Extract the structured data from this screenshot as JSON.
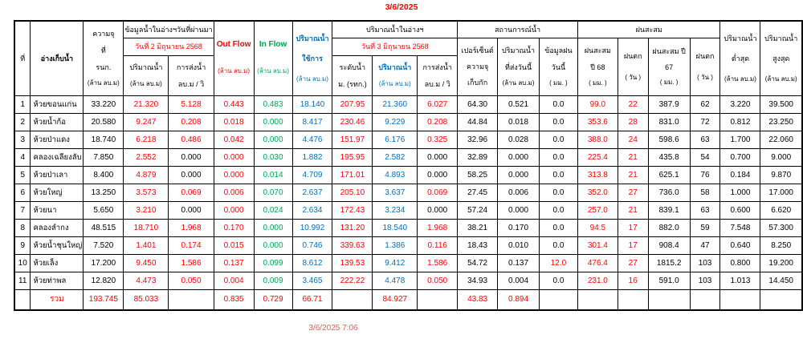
{
  "report": {
    "date": "3/6/2025",
    "generated": "3/6/2025 7:06"
  },
  "colors": {
    "red_values": "#FE0000",
    "green_values": "#00A651",
    "blue_values": "#0070C0",
    "black_values": "#000000",
    "title": "#FE0000",
    "footer": "#F75454"
  },
  "header": {
    "no": "ที่",
    "reservoir": "อ่างเก็บน้ำ",
    "capacity": [
      "ความจุ",
      "ที่",
      "รนก.",
      "(ล้าน ลบ.ม)"
    ],
    "prev_group": "ข้อมูลน้ำในอ่างฯวันที่ผ่านมา",
    "prev_date": "วันที่ 2 มิถุนายน 2568",
    "volume": [
      "ปริมาณน้ำ",
      "(ล้าน ลบ.ม)"
    ],
    "discharge": [
      "การส่งน้ำ",
      "ลบ.ม / วิ"
    ],
    "out_flow": [
      "Out Flow",
      "(ล้าน ลบ.ม)"
    ],
    "in_flow": [
      "In Flow",
      "(ล้าน ลบ.ม)"
    ],
    "usable": [
      "ปริมาณน้ำ",
      "ใช้การ",
      "(ล้าน ลบ.ม)"
    ],
    "current_group": "ปริมาณน้ำในอ่างฯ",
    "current_date": "วันที่ 3 มิถุนายน 2568",
    "level": [
      "ระดับน้ำ",
      "ม. (รทก.)"
    ],
    "volume3": [
      "ปริมาณน้ำ",
      "(ล้าน ลบ.ม)"
    ],
    "discharge3": [
      "การส่งน้ำ",
      "ลบ.ม / วิ"
    ],
    "status_group": "สถานการณ์น้ำ",
    "percent": [
      "เปอร์เซ็นต์",
      "ความจุ",
      "เก็บกัก"
    ],
    "sent_today": [
      "ปริมาณน้ำ",
      "ที่ส่งวันนี้",
      "(ล้าน ลบ.ม)"
    ],
    "rain_today": [
      "ข้อมูลฝน",
      "วันนี้",
      "( มม. )"
    ],
    "rain_group": "ฝนสะสม",
    "rain_68": [
      "ฝนสะสม",
      "ปี 68",
      "( มม. )"
    ],
    "rain_days_68": [
      "ฝนตก",
      "( วัน )"
    ],
    "rain_67": [
      "ฝนสะสม ปี",
      "67",
      "( มม. )"
    ],
    "rain_days_67": [
      "ฝนตก",
      "( วัน )"
    ],
    "min": [
      "ปริมาณน้ำ",
      "ต่ำสุด",
      "(ล้าน ลบ.ม)"
    ],
    "max": [
      "ปริมาณน้ำ",
      "สูงสุด",
      "(ล้าน ลบ.ม)"
    ]
  },
  "rows": [
    [
      "1",
      "ห้วยขอนแก่น",
      "33.220",
      "21.320",
      "5.128",
      "0.443",
      "0.483",
      "18.140",
      "207.95",
      "21.360",
      "6.027",
      "64.30",
      "0.521",
      "0.0",
      "99.0",
      "22",
      "387.9",
      "62",
      "3.220",
      "39.500"
    ],
    [
      "2",
      "ห้วยน้ำก้อ",
      "20.580",
      "9.247",
      "0.208",
      "0.018",
      "0.000",
      "8.417",
      "230.46",
      "9.229",
      "0.208",
      "44.84",
      "0.018",
      "0.0",
      "353.6",
      "28",
      "831.0",
      "72",
      "0.812",
      "23.250"
    ],
    [
      "3",
      "ห้วยป่าแดง",
      "18.740",
      "6.218",
      "0.486",
      "0.042",
      "0.000",
      "4.476",
      "151.97",
      "6.176",
      "0.325",
      "32.96",
      "0.028",
      "0.0",
      "388.0",
      "24",
      "598.6",
      "63",
      "1.700",
      "22.060"
    ],
    [
      "4",
      "คลองเฉลียงลับ",
      "7.850",
      "2.552",
      "0.000",
      "0.000",
      "0.030",
      "1.882",
      "195.95",
      "2.582",
      "0.000",
      "32.89",
      "0.000",
      "0.0",
      "225.4",
      "21",
      "435.8",
      "54",
      "0.700",
      "9.000"
    ],
    [
      "5",
      "ห้วยป่าเลา",
      "8.400",
      "4.879",
      "0.000",
      "0.000",
      "0.014",
      "4.709",
      "171.01",
      "4.893",
      "0.000",
      "58.25",
      "0.000",
      "0.0",
      "313.8",
      "21",
      "625.1",
      "76",
      "0.184",
      "9.870"
    ],
    [
      "6",
      "ห้วยใหญ่",
      "13.250",
      "3.573",
      "0.069",
      "0.006",
      "0.070",
      "2.637",
      "205.10",
      "3.637",
      "0.069",
      "27.45",
      "0.006",
      "0.0",
      "352.0",
      "27",
      "736.0",
      "58",
      "1.000",
      "17.000"
    ],
    [
      "7",
      "ห้วยนา",
      "5.650",
      "3.210",
      "0.000",
      "0.000",
      "0.024",
      "2.634",
      "172.43",
      "3.234",
      "0.000",
      "57.24",
      "0.000",
      "0.0",
      "257.0",
      "21",
      "839.1",
      "63",
      "0.600",
      "6.620"
    ],
    [
      "8",
      "คลองลำกง",
      "48.515",
      "18.710",
      "1.968",
      "0.170",
      "0.000",
      "10.992",
      "131.20",
      "18.540",
      "1.968",
      "38.21",
      "0.170",
      "0.0",
      "94.5",
      "17",
      "882.0",
      "59",
      "7.548",
      "57.300"
    ],
    [
      "9",
      "ห้วยน้ำชุนใหญ่",
      "7.520",
      "1.401",
      "0.174",
      "0.015",
      "0.000",
      "0.746",
      "339.63",
      "1.386",
      "0.116",
      "18.43",
      "0.010",
      "0.0",
      "301.4",
      "17",
      "908.4",
      "47",
      "0.640",
      "8.250"
    ],
    [
      "10",
      "ห้วยเล็ง",
      "17.200",
      "9.450",
      "1.586",
      "0.137",
      "0.099",
      "8.612",
      "139.53",
      "9.412",
      "1.586",
      "54.72",
      "0.137",
      "12.0",
      "476.4",
      "27",
      "1815.2",
      "103",
      "0.800",
      "19.200"
    ],
    [
      "11",
      "ห้วยท่าพล",
      "12.820",
      "4.473",
      "0.050",
      "0.004",
      "0.009",
      "3.465",
      "222.22",
      "4.478",
      "0.050",
      "34.93",
      "0.004",
      "0.0",
      "231.0",
      "16",
      "591.0",
      "103",
      "1.013",
      "14.450"
    ]
  ],
  "total": [
    "",
    "รวม",
    "193.745",
    "85.033",
    "",
    "0.835",
    "0.729",
    "66.71",
    "",
    "84.927",
    "",
    "43.83",
    "0.894",
    "",
    "",
    "",
    "",
    "",
    "",
    ""
  ]
}
